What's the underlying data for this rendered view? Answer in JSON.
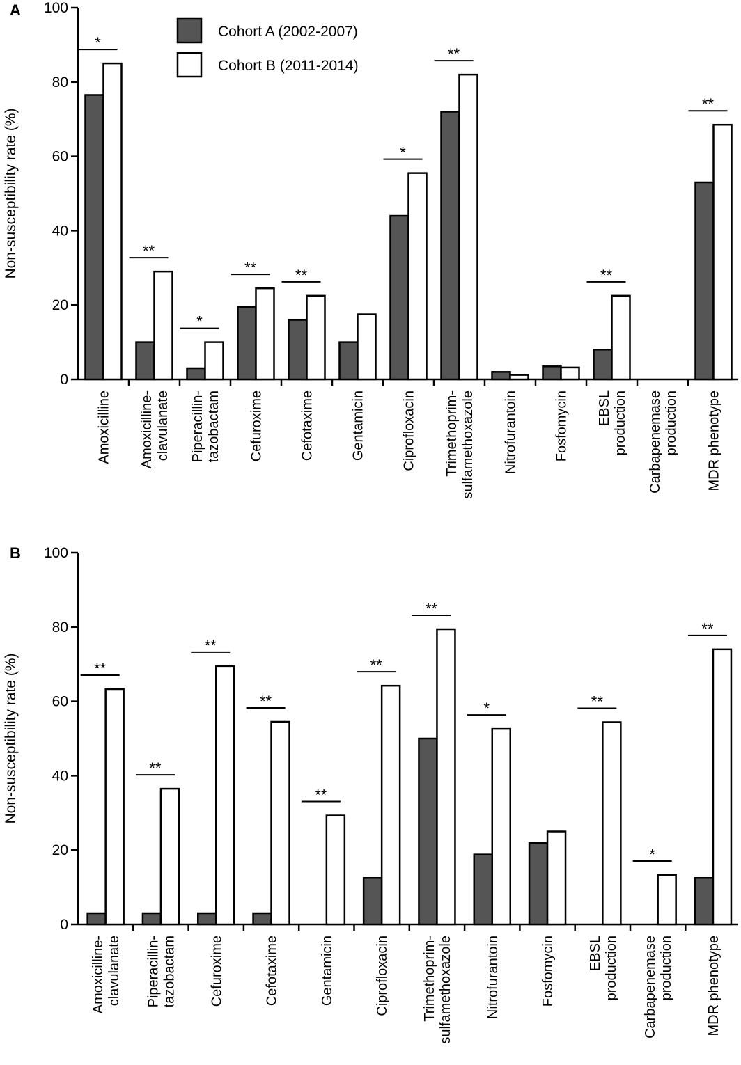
{
  "legend": {
    "position": "top",
    "entries": [
      {
        "label": "Cohort A (2002-2007)",
        "color": "#555555"
      },
      {
        "label": "Cohort B (2011-2014)",
        "color": "#ffffff"
      }
    ]
  },
  "chart_data": [
    {
      "type": "bar",
      "panel_label": "A",
      "ylabel": "Non-susceptibility rate (%)",
      "ylim": [
        0,
        100
      ],
      "yticks": [
        0,
        20,
        40,
        60,
        80,
        100
      ],
      "categories": [
        [
          "Amoxicilline"
        ],
        [
          "Amoxicilline-",
          "clavulanate"
        ],
        [
          "Piperacillin-",
          "tazobactam"
        ],
        [
          "Cefuroxime"
        ],
        [
          "Cefotaxime"
        ],
        [
          "Gentamicin"
        ],
        [
          "Ciprofloxacin"
        ],
        [
          "Trimethoprim-",
          "sulfamethoxazole"
        ],
        [
          "Nitrofurantoin"
        ],
        [
          "Fosfomycin"
        ],
        [
          "EBSL",
          "production"
        ],
        [
          "Carbapenemase",
          "production"
        ],
        [
          "MDR phenotype"
        ]
      ],
      "series": [
        {
          "name": "Cohort A (2002-2007)",
          "values": [
            76.5,
            10,
            3,
            19.5,
            16,
            10,
            44,
            72,
            2,
            3.5,
            8,
            0,
            53
          ]
        },
        {
          "name": "Cohort B (2011-2014)",
          "values": [
            85,
            29,
            10,
            24.5,
            22.5,
            17.5,
            55.5,
            82,
            1.2,
            3.2,
            22.5,
            0,
            68.5
          ]
        }
      ],
      "significance": [
        "*",
        "**",
        "*",
        "**",
        "**",
        "",
        "*",
        "**",
        "",
        "",
        "**",
        "",
        "**"
      ]
    },
    {
      "type": "bar",
      "panel_label": "B",
      "ylabel": "Non-susceptibility rate (%)",
      "ylim": [
        0,
        100
      ],
      "yticks": [
        0,
        20,
        40,
        60,
        80,
        100
      ],
      "categories": [
        [
          "Amoxicilline-",
          "clavulanate"
        ],
        [
          "Piperacillin-",
          "tazobactam"
        ],
        [
          "Cefuroxime"
        ],
        [
          "Cefotaxime"
        ],
        [
          "Gentamicin"
        ],
        [
          "Ciprofloxacin"
        ],
        [
          "Trimethoprim-",
          "sulfamethoxazole"
        ],
        [
          "Nitrofurantoin"
        ],
        [
          "Fosfomycin"
        ],
        [
          "EBSL",
          "production"
        ],
        [
          "Carbapenemase",
          "production"
        ],
        [
          "MDR phenotype"
        ]
      ],
      "series": [
        {
          "name": "Cohort A (2002-2007)",
          "values": [
            3,
            3,
            3,
            3,
            0,
            12.5,
            50,
            18.8,
            21.9,
            0,
            0,
            12.5
          ]
        },
        {
          "name": "Cohort B (2011-2014)",
          "values": [
            63.3,
            36.5,
            69.5,
            54.5,
            29.3,
            64.2,
            79.4,
            52.6,
            25,
            54.4,
            13.3,
            74
          ]
        }
      ],
      "significance": [
        "**",
        "**",
        "**",
        "**",
        "**",
        "**",
        "**",
        "*",
        "",
        "**",
        "*",
        "**"
      ]
    }
  ]
}
